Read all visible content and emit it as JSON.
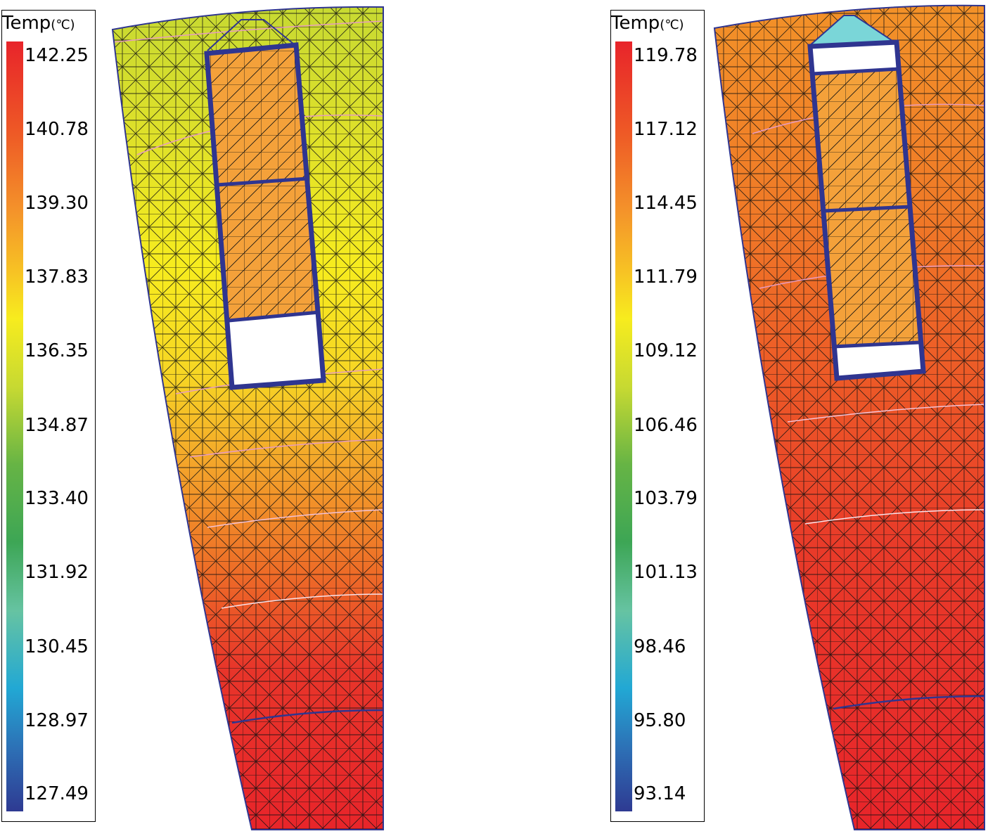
{
  "legends": [
    {
      "title": "Temp",
      "unit": "(℃)",
      "ticks": [
        "142.25",
        "140.78",
        "139.30",
        "137.83",
        "136.35",
        "134.87",
        "133.40",
        "131.92",
        "130.45",
        "128.97",
        "127.49"
      ]
    },
    {
      "title": "Temp",
      "unit": "(℃)",
      "ticks": [
        "119.78",
        "117.12",
        "114.45",
        "111.79",
        "109.12",
        "106.46",
        "103.79",
        "101.13",
        "98.46",
        "95.80",
        "93.14"
      ]
    }
  ],
  "colors": {
    "scale": [
      "#e8242a",
      "#ee5a26",
      "#f4932a",
      "#f7c324",
      "#f7ec1e",
      "#c6d932",
      "#66b445",
      "#3da655",
      "#66c3a2",
      "#22a8d4",
      "#2d6fb5",
      "#2e3a92"
    ],
    "outline": "#2f3590",
    "mesh": "#101010"
  }
}
